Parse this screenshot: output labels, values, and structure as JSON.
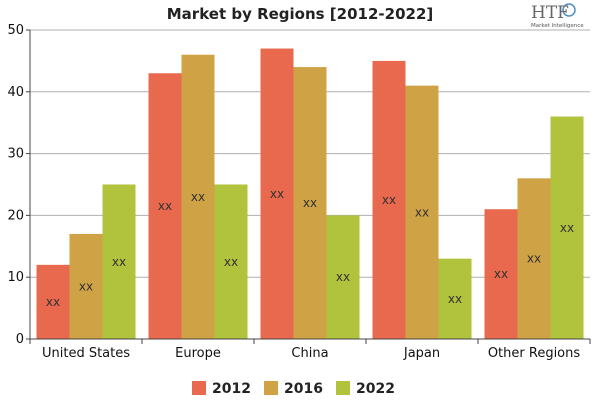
{
  "logo": {
    "main": "HTF",
    "sub": "Market Intelligence"
  },
  "chart_data": {
    "type": "bar",
    "title": "Market by Regions [2012-2022]",
    "categories": [
      "United States",
      "Europe",
      "China",
      "Japan",
      "Other Regions"
    ],
    "series": [
      {
        "name": "2012",
        "color": "#e8694e",
        "values": [
          12,
          43,
          47,
          45,
          21
        ],
        "labels": [
          "xx",
          "xx",
          "xx",
          "xx",
          "xx"
        ]
      },
      {
        "name": "2016",
        "color": "#cfa246",
        "values": [
          17,
          46,
          44,
          41,
          26
        ],
        "labels": [
          "xx",
          "xx",
          "xx",
          "xx",
          "xx"
        ]
      },
      {
        "name": "2022",
        "color": "#b1c23d",
        "values": [
          25,
          25,
          20,
          13,
          36
        ],
        "labels": [
          "xx",
          "xx",
          "xx",
          "xx",
          "xx"
        ]
      }
    ],
    "ylim": [
      0,
      50
    ],
    "yticks": [
      0,
      10,
      20,
      30,
      40,
      50
    ],
    "grid": true,
    "legend": "bottom"
  }
}
